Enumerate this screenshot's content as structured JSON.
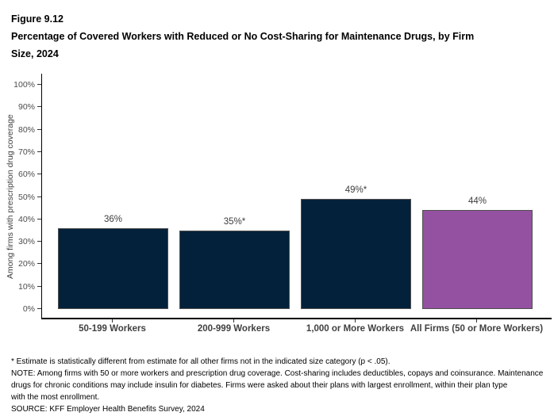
{
  "figure_label": "Figure 9.12",
  "title": "Percentage of Covered Workers with Reduced or No Cost-Sharing for Maintenance Drugs, by Firm Size, 2024",
  "chart_data": {
    "type": "bar",
    "title": "Percentage of Covered Workers with Reduced or No Cost-Sharing for Maintenance Drugs, by Firm Size, 2024",
    "categories": [
      "50-199 Workers",
      "200-999 Workers",
      "1,000 or More Workers",
      "All Firms (50 or More Workers)"
    ],
    "values": [
      36,
      35,
      49,
      44
    ],
    "bar_labels": [
      "36%",
      "35%*",
      "49%*",
      "44%"
    ],
    "bar_colors": [
      "#03213A",
      "#03213A",
      "#03213A",
      "#9551A1"
    ],
    "xlabel": "",
    "ylabel": "Among firms with prescription drug coverage",
    "ylim": [
      0,
      100
    ],
    "ytick_labels": [
      "0%",
      "10%",
      "20%",
      "30%",
      "40%",
      "50%",
      "60%",
      "70%",
      "80%",
      "90%",
      "100%"
    ],
    "grid": false,
    "legend_position": "none"
  },
  "colors": {
    "navy": "#03213A",
    "purple": "#9551A1",
    "axis_line": "#000000",
    "axis_text": "#404040",
    "tick_text": "#4d4d4d"
  },
  "footnotes": {
    "star_note": "* Estimate is statistically different from estimate for all other firms not in the indicated size category (p < .05).",
    "note": "NOTE: Among firms with 50 or more workers and prescription drug coverage. Cost-sharing includes deductibles, copays and coinsurance. Maintenance\ndrugs for chronic conditions may include insulin for diabetes. Firms were asked about their plans with largest enrollment, within their plan type\nwith the most enrollment.",
    "source": "SOURCE: KFF Employer Health Benefits Survey, 2024"
  }
}
